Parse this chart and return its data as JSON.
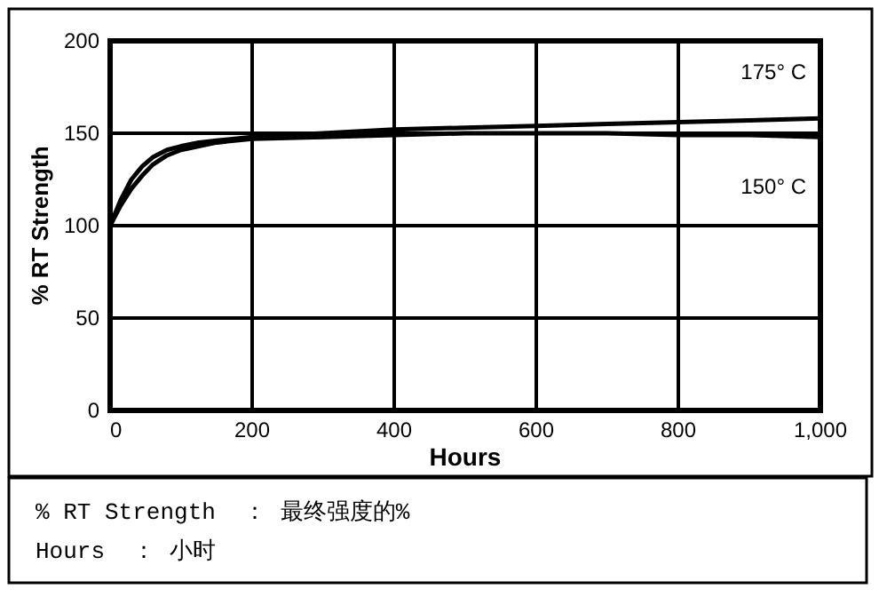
{
  "chart_data": {
    "type": "line",
    "xlabel": "Hours",
    "ylabel": "% RT Strength",
    "x": [
      0,
      15,
      30,
      45,
      60,
      80,
      100,
      125,
      150,
      200,
      300,
      400,
      500,
      600,
      700,
      800,
      900,
      1000
    ],
    "series": [
      {
        "name": "175° C",
        "color": "#000000",
        "values": [
          100,
          114,
          125,
          132,
          137,
          141,
          143,
          145,
          146,
          148,
          150,
          152,
          153,
          154,
          155,
          156,
          157,
          158
        ]
      },
      {
        "name": "150° C",
        "color": "#000000",
        "values": [
          100,
          111,
          120,
          127,
          133,
          138,
          141,
          143,
          145,
          147,
          148,
          149,
          150,
          150,
          150,
          149,
          149,
          148
        ]
      }
    ],
    "xlim": [
      0,
      1000
    ],
    "xticks": [
      0,
      200,
      400,
      600,
      800,
      {
        "value": 1000,
        "label": "1,000"
      }
    ],
    "ylim": [
      0,
      200
    ],
    "yticks": [
      0,
      50,
      100,
      150,
      200
    ],
    "grid": true,
    "marker": "none",
    "line_style": "solid",
    "annotations": [
      "% RT Strength  ： 最终强度的%",
      "Hours  ： 小时"
    ]
  }
}
